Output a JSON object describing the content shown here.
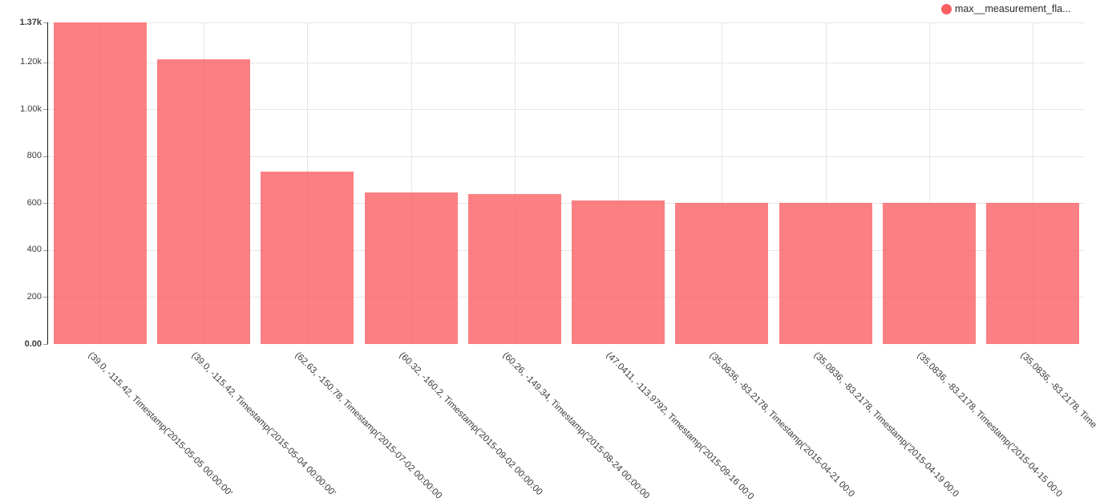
{
  "chart_data": {
    "type": "bar",
    "title": "",
    "xlabel": "",
    "ylabel": "",
    "ylim": [
      0,
      1370
    ],
    "grid": true,
    "legend": {
      "label": "max__measurement_fla...",
      "position": "top-right"
    },
    "categories": [
      "(39.0, -115.42, Timestamp('2015-05-05 00:00:00'",
      "(39.0, -115.42, Timestamp('2015-05-04 00:00:00'",
      "(62.63, -150.78, Timestamp('2015-07-02 00:00:00",
      "(60.32, -160.2, Timestamp('2015-09-02 00:00:00",
      "(60.26, -149.34, Timestamp('2015-08-24 00:00:00",
      "(47.0411, -113.9792, Timestamp('2015-09-16 00:0",
      "(35.0836, -83.2178, Timestamp('2015-04-21 00:0",
      "(35.0836, -83.2178, Timestamp('2015-04-19 00:0",
      "(35.0836, -83.2178, Timestamp('2015-04-15 00:0",
      "(35.0836, -83.2178, Time"
    ],
    "values": [
      1370,
      1213,
      735,
      646,
      640,
      610,
      602,
      600,
      600,
      600
    ],
    "y_ticks": [
      {
        "label": "0.00",
        "value": 0,
        "bold": true
      },
      {
        "label": "200",
        "value": 200,
        "bold": false
      },
      {
        "label": "400",
        "value": 400,
        "bold": false
      },
      {
        "label": "600",
        "value": 600,
        "bold": false
      },
      {
        "label": "800",
        "value": 800,
        "bold": false
      },
      {
        "label": "1.00k",
        "value": 1000,
        "bold": false
      },
      {
        "label": "1.20k",
        "value": 1200,
        "bold": false
      },
      {
        "label": "1.37k",
        "value": 1370,
        "bold": true
      }
    ],
    "colors": {
      "bar_fill": "#fb6064",
      "bar_opacity": 0.8,
      "legend_marker": "#fb5f62",
      "gridline": "#e6e6e6",
      "axis_line": "#1a1a1a",
      "tick_mark": "#999999",
      "tick_text": "#3b3b3b",
      "label_text": "#3b3b3b",
      "legend_text": "#2b2b2b"
    }
  }
}
